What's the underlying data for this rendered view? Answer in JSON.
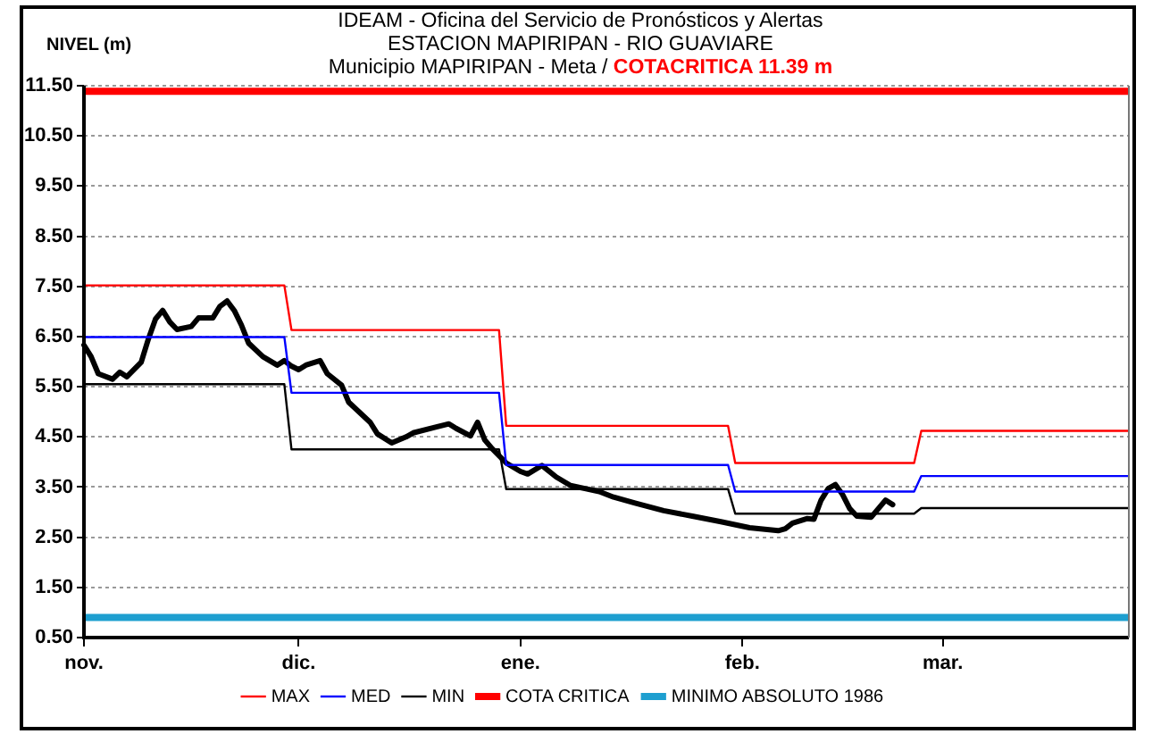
{
  "chart_data": {
    "type": "line",
    "title": "IDEAM - Oficina del Servicio de Pronósticos y Alertas",
    "subtitle": [
      "ESTACION MAPIRIPAN - RIO GUAVIARE",
      "Municipio MAPIRIPAN - Meta /"
    ],
    "annotations": [
      "COTACRITICA 11.39 m"
    ],
    "ylabel": "NIVEL (m)",
    "categories": [
      "nov.",
      null,
      null,
      null,
      null,
      null,
      null,
      null,
      null,
      null,
      null,
      null,
      null,
      null,
      null,
      null,
      null,
      null,
      null,
      null,
      null,
      null,
      null,
      null,
      null,
      null,
      null,
      null,
      null,
      null,
      "dic.",
      null,
      null,
      null,
      null,
      null,
      null,
      null,
      null,
      null,
      null,
      null,
      null,
      null,
      null,
      null,
      null,
      null,
      null,
      null,
      null,
      null,
      null,
      null,
      null,
      null,
      null,
      null,
      null,
      null,
      null,
      "ene.",
      null,
      null,
      null,
      null,
      null,
      null,
      null,
      null,
      null,
      null,
      null,
      null,
      null,
      null,
      null,
      null,
      null,
      null,
      null,
      null,
      null,
      null,
      null,
      null,
      null,
      null,
      null,
      null,
      null,
      null,
      "feb.",
      null,
      null,
      null,
      null,
      null,
      null,
      null,
      null,
      null,
      null,
      null,
      null,
      null,
      null,
      null,
      null,
      null,
      null,
      null,
      null,
      null,
      null,
      null,
      null,
      null,
      null,
      null,
      "mar.",
      null,
      null,
      null,
      null,
      null,
      null,
      null,
      null,
      null,
      null,
      null,
      null,
      null,
      null,
      null,
      null,
      null,
      null,
      null,
      null,
      null,
      null,
      null,
      null,
      null,
      null
    ],
    "ylim": [
      0.5,
      11.5
    ],
    "yticks": [
      {
        "value": 0.5,
        "label": "0.50"
      },
      {
        "value": 1.5,
        "label": "1.50"
      },
      {
        "value": 2.5,
        "label": "2.50"
      },
      {
        "value": 3.5,
        "label": "3.50"
      },
      {
        "value": 4.5,
        "label": "4.50"
      },
      {
        "value": 5.5,
        "label": "5.50"
      },
      {
        "value": 6.5,
        "label": "6.50"
      },
      {
        "value": 7.5,
        "label": "7.50"
      },
      {
        "value": 8.5,
        "label": "8.50"
      },
      {
        "value": 9.5,
        "label": "9.50"
      },
      {
        "value": 10.5,
        "label": "10.50"
      },
      {
        "value": 11.5,
        "label": "11.50"
      }
    ],
    "grid": "y",
    "legend": "bottom",
    "series": [
      {
        "name": "MAX",
        "color": "#ff0000",
        "values": [
          7.52,
          7.52,
          7.52,
          7.52,
          7.52,
          7.52,
          7.52,
          7.52,
          7.52,
          7.52,
          7.52,
          7.52,
          7.52,
          7.52,
          7.52,
          7.52,
          7.52,
          7.52,
          7.52,
          7.52,
          7.52,
          7.52,
          7.52,
          7.52,
          7.52,
          7.52,
          7.52,
          7.52,
          7.52,
          6.63,
          6.63,
          6.63,
          6.63,
          6.63,
          6.63,
          6.63,
          6.63,
          6.63,
          6.63,
          6.63,
          6.63,
          6.63,
          6.63,
          6.63,
          6.63,
          6.63,
          6.63,
          6.63,
          6.63,
          6.63,
          6.63,
          6.63,
          6.63,
          6.63,
          6.63,
          6.63,
          6.63,
          6.63,
          6.63,
          4.72,
          4.72,
          4.72,
          4.72,
          4.72,
          4.72,
          4.72,
          4.72,
          4.72,
          4.72,
          4.72,
          4.72,
          4.72,
          4.72,
          4.72,
          4.72,
          4.72,
          4.72,
          4.72,
          4.72,
          4.72,
          4.72,
          4.72,
          4.72,
          4.72,
          4.72,
          4.72,
          4.72,
          4.72,
          4.72,
          4.72,
          4.72,
          3.98,
          3.98,
          3.98,
          3.98,
          3.98,
          3.98,
          3.98,
          3.98,
          3.98,
          3.98,
          3.98,
          3.98,
          3.98,
          3.98,
          3.98,
          3.98,
          3.98,
          3.98,
          3.98,
          3.98,
          3.98,
          3.98,
          3.98,
          3.98,
          3.98,
          3.98,
          4.62,
          4.62,
          4.62,
          4.62,
          4.62,
          4.62,
          4.62,
          4.62,
          4.62,
          4.62,
          4.62,
          4.62,
          4.62,
          4.62,
          4.62,
          4.62,
          4.62,
          4.62,
          4.62,
          4.62,
          4.62,
          4.62,
          4.62,
          4.62,
          4.62,
          4.62,
          4.62,
          4.62,
          4.62,
          4.62
        ]
      },
      {
        "name": "MED",
        "color": "#0000ff",
        "values": [
          6.49,
          6.49,
          6.49,
          6.49,
          6.49,
          6.49,
          6.49,
          6.49,
          6.49,
          6.49,
          6.49,
          6.49,
          6.49,
          6.49,
          6.49,
          6.49,
          6.49,
          6.49,
          6.49,
          6.49,
          6.49,
          6.49,
          6.49,
          6.49,
          6.49,
          6.49,
          6.49,
          6.49,
          6.49,
          5.38,
          5.38,
          5.38,
          5.38,
          5.38,
          5.38,
          5.38,
          5.38,
          5.38,
          5.38,
          5.38,
          5.38,
          5.38,
          5.38,
          5.38,
          5.38,
          5.38,
          5.38,
          5.38,
          5.38,
          5.38,
          5.38,
          5.38,
          5.38,
          5.38,
          5.38,
          5.38,
          5.38,
          5.38,
          5.38,
          3.94,
          3.94,
          3.94,
          3.94,
          3.94,
          3.94,
          3.94,
          3.94,
          3.94,
          3.94,
          3.94,
          3.94,
          3.94,
          3.94,
          3.94,
          3.94,
          3.94,
          3.94,
          3.94,
          3.94,
          3.94,
          3.94,
          3.94,
          3.94,
          3.94,
          3.94,
          3.94,
          3.94,
          3.94,
          3.94,
          3.94,
          3.94,
          3.41,
          3.41,
          3.41,
          3.41,
          3.41,
          3.41,
          3.41,
          3.41,
          3.41,
          3.41,
          3.41,
          3.41,
          3.41,
          3.41,
          3.41,
          3.41,
          3.41,
          3.41,
          3.41,
          3.41,
          3.41,
          3.41,
          3.41,
          3.41,
          3.41,
          3.41,
          3.72,
          3.72,
          3.72,
          3.72,
          3.72,
          3.72,
          3.72,
          3.72,
          3.72,
          3.72,
          3.72,
          3.72,
          3.72,
          3.72,
          3.72,
          3.72,
          3.72,
          3.72,
          3.72,
          3.72,
          3.72,
          3.72,
          3.72,
          3.72,
          3.72,
          3.72,
          3.72,
          3.72,
          3.72,
          3.72
        ]
      },
      {
        "name": "MIN",
        "color": "#000000",
        "values": [
          5.55,
          5.55,
          5.55,
          5.55,
          5.55,
          5.55,
          5.55,
          5.55,
          5.55,
          5.55,
          5.55,
          5.55,
          5.55,
          5.55,
          5.55,
          5.55,
          5.55,
          5.55,
          5.55,
          5.55,
          5.55,
          5.55,
          5.55,
          5.55,
          5.55,
          5.55,
          5.55,
          5.55,
          5.55,
          4.25,
          4.25,
          4.25,
          4.25,
          4.25,
          4.25,
          4.25,
          4.25,
          4.25,
          4.25,
          4.25,
          4.25,
          4.25,
          4.25,
          4.25,
          4.25,
          4.25,
          4.25,
          4.25,
          4.25,
          4.25,
          4.25,
          4.25,
          4.25,
          4.25,
          4.25,
          4.25,
          4.25,
          4.25,
          4.25,
          3.46,
          3.46,
          3.46,
          3.46,
          3.46,
          3.46,
          3.46,
          3.46,
          3.46,
          3.46,
          3.46,
          3.46,
          3.46,
          3.46,
          3.46,
          3.46,
          3.46,
          3.46,
          3.46,
          3.46,
          3.46,
          3.46,
          3.46,
          3.46,
          3.46,
          3.46,
          3.46,
          3.46,
          3.46,
          3.46,
          3.46,
          3.46,
          2.97,
          2.97,
          2.97,
          2.97,
          2.97,
          2.97,
          2.97,
          2.97,
          2.97,
          2.97,
          2.97,
          2.97,
          2.97,
          2.97,
          2.97,
          2.97,
          2.97,
          2.97,
          2.97,
          2.97,
          2.97,
          2.97,
          2.97,
          2.97,
          2.97,
          2.97,
          3.08,
          3.08,
          3.08,
          3.08,
          3.08,
          3.08,
          3.08,
          3.08,
          3.08,
          3.08,
          3.08,
          3.08,
          3.08,
          3.08,
          3.08,
          3.08,
          3.08,
          3.08,
          3.08,
          3.08,
          3.08,
          3.08,
          3.08,
          3.08,
          3.08,
          3.08,
          3.08,
          3.08,
          3.08,
          3.08
        ]
      },
      {
        "color": "#000000",
        "values": [
          6.33,
          6.1,
          5.76,
          null,
          5.65,
          5.79,
          5.7,
          null,
          5.99,
          6.45,
          6.85,
          7.02,
          6.79,
          6.64,
          null,
          6.7,
          6.87,
          null,
          6.87,
          7.1,
          7.21,
          7.02,
          6.73,
          6.37,
          null,
          6.1,
          null,
          5.93,
          6.02,
          5.91,
          5.84,
          5.93,
          null,
          6.02,
          5.76,
          null,
          5.53,
          5.19,
          null,
          null,
          4.79,
          4.56,
          null,
          4.38,
          null,
          4.5,
          4.58,
          null,
          null,
          4.69,
          null,
          4.76,
          4.67,
          null,
          4.52,
          4.79,
          4.44,
          4.27,
          null,
          3.98,
          null,
          3.81,
          3.76,
          null,
          3.93,
          null,
          3.7,
          null,
          3.53,
          null,
          3.47,
          null,
          3.41,
          null,
          3.3,
          null,
          null,
          3.18,
          null,
          null,
          null,
          3.03,
          null,
          null,
          null,
          2.92,
          null,
          null,
          null,
          2.81,
          null,
          null,
          null,
          2.69,
          null,
          null,
          null,
          2.63,
          2.67,
          2.78,
          null,
          2.87,
          2.86,
          3.24,
          3.47,
          3.55,
          3.35,
          3.07,
          2.92,
          null,
          2.9,
          3.07,
          3.24,
          3.15,
          null,
          null,
          null,
          null,
          null,
          null,
          null,
          null,
          null,
          null,
          null,
          null,
          null,
          null,
          null,
          null,
          null,
          null,
          null,
          null,
          null,
          null,
          null,
          null,
          null,
          null,
          null,
          null,
          null,
          null,
          null,
          null,
          null
        ]
      }
    ],
    "ref_lines": [
      {
        "axis": "y",
        "value": 11.39,
        "label": "COTA CRITICA",
        "color": "#ff0000"
      },
      {
        "axis": "y",
        "value": 0.9,
        "label": "MINIMO ABSOLUTO 1986",
        "color": "#1e9fd0"
      }
    ]
  }
}
